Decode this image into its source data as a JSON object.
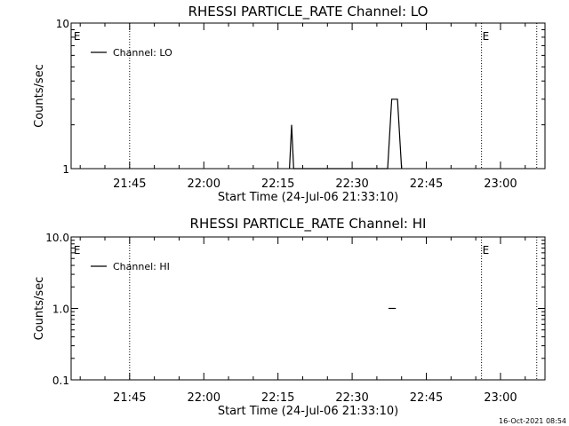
{
  "footer_timestamp": "16-Oct-2021 08:54",
  "chart_data": [
    {
      "type": "line",
      "title": "RHESSI PARTICLE_RATE Channel: LO",
      "xlabel": "Start Time (24-Jul-06 21:33:10)",
      "ylabel": "Counts/sec",
      "yscale": "log",
      "xlim": [
        "21:33:10",
        "23:09:00"
      ],
      "ylim": [
        1,
        10
      ],
      "x_ticks": [
        "21:45",
        "22:00",
        "22:15",
        "22:30",
        "22:45",
        "23:00"
      ],
      "y_ticks": [
        "10",
        "1"
      ],
      "legend": "top-left",
      "series": [
        {
          "name": "Channel: LO",
          "points": [
            [
              "22:17:20",
              1.0
            ],
            [
              "22:17:45",
              2.0
            ],
            [
              "22:18:10",
              1.0
            ],
            [
              "22:37:10",
              1.0
            ],
            [
              "22:38:00",
              3.0
            ],
            [
              "22:39:10",
              3.0
            ],
            [
              "22:40:00",
              1.0
            ]
          ]
        }
      ],
      "markers": [
        {
          "label": "E",
          "time": "21:33:30"
        },
        {
          "label": "E",
          "time": "22:56:10"
        }
      ],
      "vlines": [
        "21:45:00",
        "22:56:10",
        "23:07:20"
      ]
    },
    {
      "type": "line",
      "title": "RHESSI PARTICLE_RATE Channel: HI",
      "xlabel": "Start Time (24-Jul-06 21:33:10)",
      "ylabel": "Counts/sec",
      "yscale": "log",
      "xlim": [
        "21:33:10",
        "23:09:00"
      ],
      "ylim": [
        0.1,
        10
      ],
      "x_ticks": [
        "21:45",
        "22:00",
        "22:15",
        "22:30",
        "22:45",
        "23:00"
      ],
      "y_ticks": [
        "10.0",
        "1.0",
        "0.1"
      ],
      "legend": "top-left",
      "series": [
        {
          "name": "Channel: HI",
          "points": [
            [
              "22:37:20",
              1.0
            ],
            [
              "22:38:50",
              1.0
            ]
          ]
        }
      ],
      "markers": [
        {
          "label": "E",
          "time": "21:33:30"
        },
        {
          "label": "E",
          "time": "22:56:10"
        }
      ],
      "vlines": [
        "21:45:00",
        "22:56:10",
        "23:07:20"
      ]
    }
  ]
}
